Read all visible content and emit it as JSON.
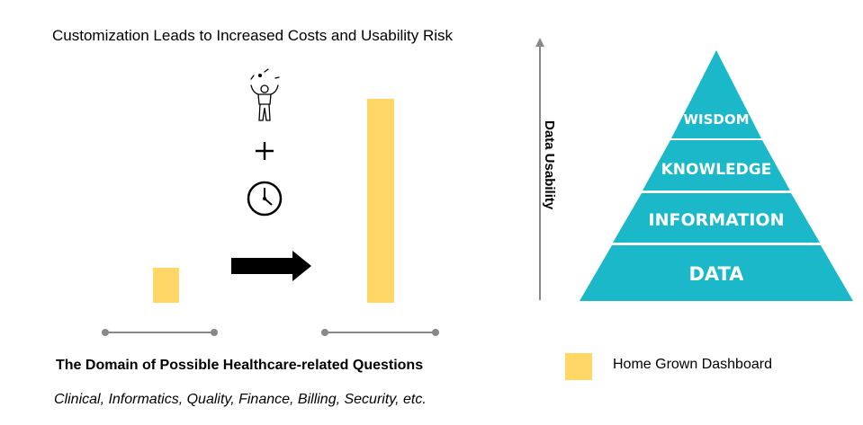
{
  "title": "Customization Leads to Increased Costs and Usability Risk",
  "bars": [
    {
      "label": "small",
      "level": 0.17,
      "color": "#ffd766"
    },
    {
      "label": "large",
      "level": 1.0,
      "color": "#ffd766"
    }
  ],
  "icons": {
    "juggler": "juggler-icon",
    "plus": "+",
    "clock": "clock-icon",
    "arrow": "right-arrow-icon"
  },
  "domain": {
    "title": "The Domain of Possible Healthcare-related Questions",
    "subtitle": "Clinical, Informatics, Quality, Finance, Billing, Security, etc."
  },
  "axis": {
    "label": "Data Usability"
  },
  "pyramid": {
    "color": "#1ab8c8",
    "levels": [
      "WISDOM",
      "KNOWLEDGE",
      "INFORMATION",
      "DATA"
    ]
  },
  "legend": {
    "label": "Home Grown Dashboard",
    "color": "#ffd766"
  }
}
